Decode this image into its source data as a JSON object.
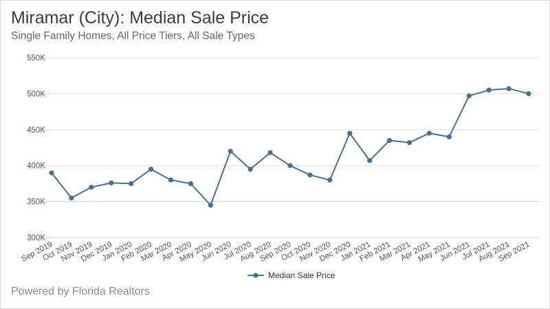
{
  "header": {
    "title": "Miramar (City): Median Sale Price",
    "subtitle": "Single Family Homes, All Price Tiers, All Sale Types"
  },
  "footer": {
    "text": "Powered by Florida Realtors"
  },
  "colors": {
    "series": "#4a6f91",
    "grid": "#dddddd"
  },
  "chart_data": {
    "type": "line",
    "title": "Miramar (City): Median Sale Price",
    "subtitle": "Single Family Homes, All Price Tiers, All Sale Types",
    "xlabel": "",
    "ylabel": "",
    "ylim": [
      300000,
      550000
    ],
    "yticks": [
      300000,
      350000,
      400000,
      450000,
      500000,
      550000
    ],
    "ytick_labels": [
      "300K",
      "350K",
      "400K",
      "450K",
      "500K",
      "550K"
    ],
    "grid": "horizontal",
    "legend": "bottom-center",
    "categories": [
      "Sep 2019",
      "Oct 2019",
      "Nov 2019",
      "Dec 2019",
      "Jan 2020",
      "Feb 2020",
      "Mar 2020",
      "Apr 2020",
      "May 2020",
      "Jun 2020",
      "Jul 2020",
      "Aug 2020",
      "Sep 2020",
      "Oct 2020",
      "Nov 2020",
      "Dec 2020",
      "Jan 2021",
      "Feb 2021",
      "Mar 2021",
      "Apr 2021",
      "May 2021",
      "Jun 2021",
      "Jul 2021",
      "Aug 2021",
      "Sep 2021"
    ],
    "series": [
      {
        "name": "Median Sale Price",
        "values": [
          390000,
          355000,
          370000,
          376000,
          375000,
          395000,
          380000,
          375000,
          345000,
          420000,
          395000,
          418000,
          400000,
          387000,
          380000,
          445000,
          407000,
          435000,
          432000,
          445000,
          440000,
          497000,
          505000,
          507000,
          500000
        ]
      }
    ]
  }
}
